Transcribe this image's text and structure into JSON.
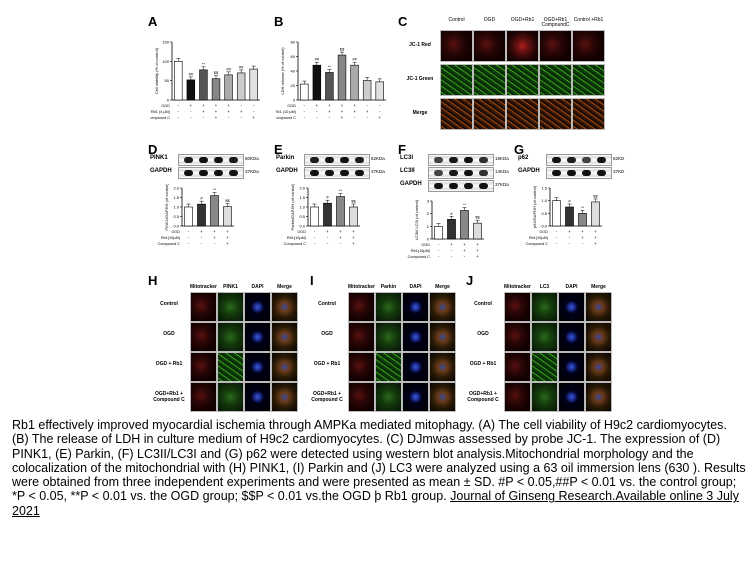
{
  "panels": {
    "A": {
      "letter": "A",
      "ylabel": "Cell viability (% of control)",
      "row_labels": [
        "OGD",
        "Rb1 (4 μM)",
        "Compound C"
      ],
      "signs": [
        [
          "-",
          "+",
          "+",
          "+",
          "+",
          "-",
          "-"
        ],
        [
          "-",
          "-",
          "+",
          "+",
          "+",
          "+",
          "-"
        ],
        [
          "-",
          "-",
          "-",
          "+",
          "-",
          "-",
          "+"
        ]
      ],
      "annotations": [
        "##",
        "**",
        "$$",
        "##",
        "##"
      ]
    },
    "B": {
      "letter": "B",
      "ylabel": "LDH release (% of control)",
      "row_labels": [
        "OGD",
        "Rb1 (10 μM)",
        "Compound C"
      ],
      "signs": [
        [
          "-",
          "+",
          "+",
          "+",
          "+",
          "-",
          "-"
        ],
        [
          "-",
          "-",
          "+",
          "+",
          "+",
          "+",
          "-"
        ],
        [
          "-",
          "-",
          "-",
          "+",
          "-",
          "-",
          "+"
        ]
      ],
      "annotations": [
        "##",
        "**",
        "$$",
        "##"
      ]
    },
    "C": {
      "letter": "C",
      "columns": [
        "Control",
        "OGD",
        "OGD+Rb1",
        "OGD+Rb1 CompoundC",
        "Control +Rb1"
      ],
      "rows": [
        "JC-1 Red",
        "JC-1 Green",
        "Merge"
      ]
    },
    "D": {
      "letter": "D",
      "blot_labels": [
        "PINK1",
        "GAPDH"
      ],
      "kda": [
        "60KDa",
        "37KDa"
      ],
      "ylabel": "PINK1/GAPDH (of control)",
      "row_labels": [
        "OGD",
        "Rb1(10μM)",
        "Compound C"
      ],
      "signs": [
        [
          "-",
          "+",
          "+",
          "+"
        ],
        [
          "-",
          "-",
          "+",
          "+"
        ],
        [
          "-",
          "-",
          "-",
          "+"
        ]
      ],
      "annotations": [
        "#",
        "**",
        "$$"
      ]
    },
    "E": {
      "letter": "E",
      "blot_labels": [
        "Parkin",
        "GAPDH"
      ],
      "kda": [
        "52KDa",
        "37KDa"
      ],
      "ylabel": "Parkin/GAPDH (of control)",
      "row_labels": [
        "OGD",
        "Rb1(10μM)",
        "Compound C"
      ],
      "signs": [
        [
          "-",
          "+",
          "+",
          "+"
        ],
        [
          "-",
          "-",
          "+",
          "+"
        ],
        [
          "-",
          "-",
          "-",
          "+"
        ]
      ],
      "annotations": [
        "#",
        "**",
        "$$"
      ]
    },
    "F": {
      "letter": "F",
      "blot_labels": [
        "LC3I",
        "LC3II",
        "GAPDH"
      ],
      "kda": [
        "16KDa",
        "14KDa",
        "37KDa"
      ],
      "ylabel": "LC3II/ LC3I (of control)",
      "row_labels": [
        "OGD",
        "Rb1(10μM)",
        "Compound C"
      ],
      "signs": [
        [
          "-",
          "+",
          "+",
          "+"
        ],
        [
          "-",
          "-",
          "+",
          "+"
        ],
        [
          "-",
          "-",
          "-",
          "+"
        ]
      ],
      "annotations": [
        "#",
        "**",
        "$$"
      ]
    },
    "G": {
      "letter": "G",
      "blot_labels": [
        "p62",
        "GAPDH"
      ],
      "kda": [
        "62KD",
        "37KD"
      ],
      "ylabel": "p62/GAPDH (of control)",
      "row_labels": [
        "OGD",
        "Rb1(10μM)",
        "Compound C"
      ],
      "signs": [
        [
          "-",
          "+",
          "+",
          "+"
        ],
        [
          "-",
          "-",
          "+",
          "+"
        ],
        [
          "-",
          "-",
          "-",
          "+"
        ]
      ],
      "annotations": [
        "#",
        "**",
        "$$"
      ]
    },
    "H": {
      "letter": "H",
      "columns": [
        "Mitotracker",
        "PINK1",
        "DAPI",
        "Merge"
      ],
      "rows": [
        "Control",
        "OGD",
        "OGD + Rb1",
        "OGD+Rb1 + Compound C"
      ]
    },
    "I": {
      "letter": "I",
      "columns": [
        "Mitotracker",
        "Parkin",
        "DAPI",
        "Merge"
      ],
      "rows": [
        "Control",
        "OGD",
        "OGD + Rb1",
        "OGD+Rb1 + Compound C"
      ]
    },
    "J": {
      "letter": "J",
      "columns": [
        "Mitotracker",
        "LC3",
        "DAPI",
        "Merge"
      ],
      "rows": [
        "Control",
        "OGD",
        "OGD + Rb1",
        "OGD+Rb1 + Compound C"
      ]
    }
  },
  "chart_data": [
    {
      "type": "bar",
      "panel": "A",
      "values": [
        100,
        52,
        78,
        55,
        65,
        70,
        80
      ],
      "ylim": [
        0,
        150
      ],
      "yticks": [
        "0",
        "50",
        "100",
        "150"
      ],
      "colors": [
        "#ffffff",
        "#111111",
        "#555555",
        "#888888",
        "#aaaaaa",
        "#cccccc",
        "#e0e0e0"
      ]
    },
    {
      "type": "bar",
      "panel": "B",
      "values": [
        22,
        48,
        38,
        62,
        48,
        27,
        25
      ],
      "ylim": [
        0,
        80
      ],
      "yticks": [
        "0",
        "20",
        "40",
        "60",
        "80"
      ],
      "colors": [
        "#ffffff",
        "#111111",
        "#555555",
        "#888888",
        "#aaaaaa",
        "#cccccc",
        "#e0e0e0"
      ]
    },
    {
      "type": "bar",
      "panel": "D",
      "values": [
        1.0,
        1.15,
        1.6,
        1.02
      ],
      "ylim": [
        0,
        2.0
      ],
      "yticks": [
        "0.0",
        "0.5",
        "1.0",
        "1.5",
        "2.0"
      ],
      "colors": [
        "#ffffff",
        "#333333",
        "#888888",
        "#dddddd"
      ]
    },
    {
      "type": "bar",
      "panel": "E",
      "values": [
        1.0,
        1.2,
        1.55,
        1.0
      ],
      "ylim": [
        0,
        2.0
      ],
      "yticks": [
        "0.0",
        "0.5",
        "1.0",
        "1.5",
        "2.0"
      ],
      "colors": [
        "#ffffff",
        "#333333",
        "#888888",
        "#dddddd"
      ]
    },
    {
      "type": "bar",
      "panel": "F",
      "values": [
        1.0,
        1.55,
        2.25,
        1.25
      ],
      "ylim": [
        0,
        3
      ],
      "yticks": [
        "0",
        "1",
        "2",
        "3"
      ],
      "colors": [
        "#ffffff",
        "#333333",
        "#888888",
        "#dddddd"
      ]
    },
    {
      "type": "bar",
      "panel": "G",
      "values": [
        1.0,
        0.75,
        0.5,
        0.95
      ],
      "ylim": [
        0,
        1.5
      ],
      "yticks": [
        "0.0",
        "0.5",
        "1.0",
        "1.5"
      ],
      "colors": [
        "#ffffff",
        "#333333",
        "#888888",
        "#dddddd"
      ]
    }
  ],
  "caption": {
    "text": "Rb1 effectively improved myocardial ischemia through AMPKa mediated mitophagy. (A) The cell viability of H9c2 cardiomyocytes. (B) The release of LDH in culture medium of H9c2 cardiomyocytes. (C) DJmwas assessed by probe JC-1. The expression of (D) PINK1, (E) Parkin, (F) LC3II/LC3I and (G) p62 were detected using western blot analysis.Mitochondrial morphology and the colocalization of the mitochondrial with (H) PINK1, (I) Parkin and (J) LC3 were analyzed using a 63   oil immersion lens (630   ). Results were obtained from three independent experiments and were presented as mean ± SD. #P < 0.05,##P < 0.01 vs. the control group; *P < 0.05, **P < 0.01 vs. the OGD group; $$P < 0.01 vs.the OGD þ Rb1 group. ",
    "link": "Journal of Ginseng Research.Available online 3 July 2021"
  }
}
